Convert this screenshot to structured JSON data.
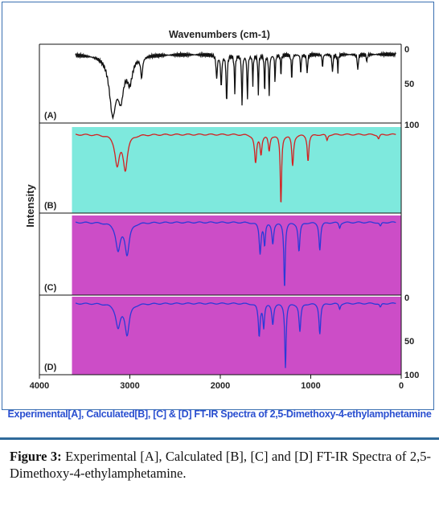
{
  "chart_data": {
    "type": "line",
    "title": "Wavenumbers (cm-1)",
    "ylabel": "Intensity",
    "xlim": [
      4000,
      0
    ],
    "x_ticks": [
      "4000",
      "3000",
      "2000",
      "1000",
      "0"
    ],
    "right_ticks": {
      "A": [
        "0",
        "50",
        "100"
      ],
      "D": [
        "0",
        "50",
        "100"
      ]
    },
    "panels": [
      {
        "id": "A",
        "label": "(A)",
        "color": "#111111",
        "background": "#ffffff",
        "x_start": 3600,
        "baseline": 0.08,
        "bands": [
          {
            "center": 3190,
            "width": 45,
            "depth": 0.82
          },
          {
            "center": 3100,
            "width": 40,
            "depth": 0.55
          },
          {
            "center": 3000,
            "width": 35,
            "depth": 0.35
          },
          {
            "center": 2870,
            "width": 12,
            "depth": 0.3
          },
          {
            "center": 2040,
            "width": 8,
            "depth": 0.35
          },
          {
            "center": 1990,
            "width": 8,
            "depth": 0.45
          },
          {
            "center": 1930,
            "width": 7,
            "depth": 0.7
          },
          {
            "center": 1840,
            "width": 6,
            "depth": 0.55
          },
          {
            "center": 1760,
            "width": 6,
            "depth": 0.75
          },
          {
            "center": 1700,
            "width": 6,
            "depth": 0.65
          },
          {
            "center": 1640,
            "width": 5,
            "depth": 0.45
          },
          {
            "center": 1580,
            "width": 5,
            "depth": 0.6
          },
          {
            "center": 1510,
            "width": 5,
            "depth": 0.55
          },
          {
            "center": 1460,
            "width": 6,
            "depth": 0.6
          },
          {
            "center": 1395,
            "width": 5,
            "depth": 0.4
          },
          {
            "center": 1330,
            "width": 5,
            "depth": 0.3
          },
          {
            "center": 1210,
            "width": 6,
            "depth": 0.35
          },
          {
            "center": 1110,
            "width": 5,
            "depth": 0.3
          },
          {
            "center": 1040,
            "width": 6,
            "depth": 0.3
          },
          {
            "center": 870,
            "width": 5,
            "depth": 0.2
          },
          {
            "center": 760,
            "width": 6,
            "depth": 0.28
          },
          {
            "center": 700,
            "width": 5,
            "depth": 0.25
          },
          {
            "center": 480,
            "width": 6,
            "depth": 0.25
          },
          {
            "center": 380,
            "width": 5,
            "depth": 0.12
          }
        ]
      },
      {
        "id": "B",
        "label": "(B)",
        "color": "#d42020",
        "background": "#7ee9dd",
        "x_start": 3600,
        "baseline": 0.03,
        "bands": [
          {
            "center": 3140,
            "width": 30,
            "depth": 0.4
          },
          {
            "center": 3050,
            "width": 28,
            "depth": 0.45
          },
          {
            "center": 1610,
            "width": 14,
            "depth": 0.38
          },
          {
            "center": 1550,
            "width": 12,
            "depth": 0.25
          },
          {
            "center": 1460,
            "width": 12,
            "depth": 0.22
          },
          {
            "center": 1330,
            "width": 9,
            "depth": 0.95
          },
          {
            "center": 1200,
            "width": 12,
            "depth": 0.42
          },
          {
            "center": 1030,
            "width": 11,
            "depth": 0.35
          },
          {
            "center": 820,
            "width": 10,
            "depth": 0.08
          },
          {
            "center": 250,
            "width": 12,
            "depth": 0.06
          }
        ]
      },
      {
        "id": "C",
        "label": "(C)",
        "color": "#2a3ad8",
        "background": "#cc4dc7",
        "x_start": 3600,
        "baseline": 0.03,
        "bands": [
          {
            "center": 3130,
            "width": 30,
            "depth": 0.4
          },
          {
            "center": 3030,
            "width": 28,
            "depth": 0.45
          },
          {
            "center": 1560,
            "width": 12,
            "depth": 0.45
          },
          {
            "center": 1510,
            "width": 10,
            "depth": 0.32
          },
          {
            "center": 1420,
            "width": 12,
            "depth": 0.3
          },
          {
            "center": 1290,
            "width": 9,
            "depth": 0.95
          },
          {
            "center": 1130,
            "width": 12,
            "depth": 0.42
          },
          {
            "center": 900,
            "width": 11,
            "depth": 0.4
          },
          {
            "center": 680,
            "width": 10,
            "depth": 0.08
          },
          {
            "center": 230,
            "width": 12,
            "depth": 0.06
          }
        ]
      },
      {
        "id": "D",
        "label": "(D)",
        "color": "#2a3ad8",
        "background": "#cc4dc7",
        "x_start": 3600,
        "baseline": 0.03,
        "bands": [
          {
            "center": 3130,
            "width": 30,
            "depth": 0.35
          },
          {
            "center": 3030,
            "width": 28,
            "depth": 0.45
          },
          {
            "center": 1570,
            "width": 12,
            "depth": 0.48
          },
          {
            "center": 1520,
            "width": 10,
            "depth": 0.35
          },
          {
            "center": 1420,
            "width": 12,
            "depth": 0.3
          },
          {
            "center": 1280,
            "width": 9,
            "depth": 0.95
          },
          {
            "center": 1120,
            "width": 12,
            "depth": 0.42
          },
          {
            "center": 900,
            "width": 11,
            "depth": 0.45
          },
          {
            "center": 680,
            "width": 10,
            "depth": 0.08
          },
          {
            "center": 230,
            "width": 12,
            "depth": 0.06
          }
        ]
      }
    ]
  },
  "figure": {
    "subtitle": "Experimental[A], Calculated[B], [C] & [D] FT-IR Spectra of 2,5-Dimethoxy-4-ethylamphetamine",
    "caption_label": "Figure 3:",
    "caption_text": "Experimental [A], Calculated [B], [C] and [D] FT-IR Spectra of 2,5-Dimethoxy-4-ethylamphetamine."
  }
}
